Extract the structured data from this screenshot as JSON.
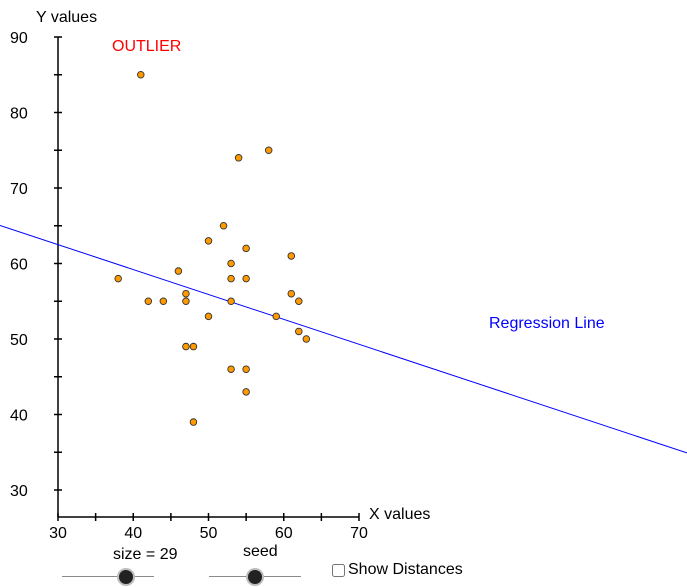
{
  "chart_data": {
    "type": "scatter",
    "xlabel": "X values",
    "ylabel": "Y values",
    "xlim": [
      30,
      70
    ],
    "ylim": [
      30,
      90
    ],
    "x_ticks": [
      30,
      40,
      50,
      60,
      70
    ],
    "y_ticks": [
      30,
      40,
      50,
      60,
      70,
      80,
      90
    ],
    "grid": false,
    "point_color": "#ff9900",
    "points": [
      {
        "x": 41,
        "y": 85
      },
      {
        "x": 54,
        "y": 74
      },
      {
        "x": 58,
        "y": 75
      },
      {
        "x": 52,
        "y": 65
      },
      {
        "x": 50,
        "y": 63
      },
      {
        "x": 55,
        "y": 62
      },
      {
        "x": 61,
        "y": 61
      },
      {
        "x": 53,
        "y": 60
      },
      {
        "x": 46,
        "y": 59
      },
      {
        "x": 38,
        "y": 58
      },
      {
        "x": 53,
        "y": 58
      },
      {
        "x": 55,
        "y": 58
      },
      {
        "x": 47,
        "y": 56
      },
      {
        "x": 61,
        "y": 56
      },
      {
        "x": 42,
        "y": 55
      },
      {
        "x": 44,
        "y": 55
      },
      {
        "x": 47,
        "y": 55
      },
      {
        "x": 53,
        "y": 55
      },
      {
        "x": 62,
        "y": 55
      },
      {
        "x": 50,
        "y": 53
      },
      {
        "x": 59,
        "y": 53
      },
      {
        "x": 62,
        "y": 51
      },
      {
        "x": 63,
        "y": 50
      },
      {
        "x": 47,
        "y": 49
      },
      {
        "x": 48,
        "y": 49
      },
      {
        "x": 53,
        "y": 46
      },
      {
        "x": 55,
        "y": 46
      },
      {
        "x": 55,
        "y": 43
      },
      {
        "x": 48,
        "y": 39
      }
    ],
    "regression_line": {
      "label": "Regression Line",
      "color": "#0000ff",
      "slope": -0.33,
      "intercept": 72.4
    },
    "annotations": [
      {
        "text": "OUTLIER",
        "color": "#ff0000"
      }
    ]
  },
  "controls": {
    "size_label": "size = 29",
    "size_value": 29,
    "size_fraction": 0.7,
    "seed_label": "seed",
    "seed_fraction": 0.5,
    "show_distances_label": "Show Distances",
    "show_distances_checked": false
  }
}
